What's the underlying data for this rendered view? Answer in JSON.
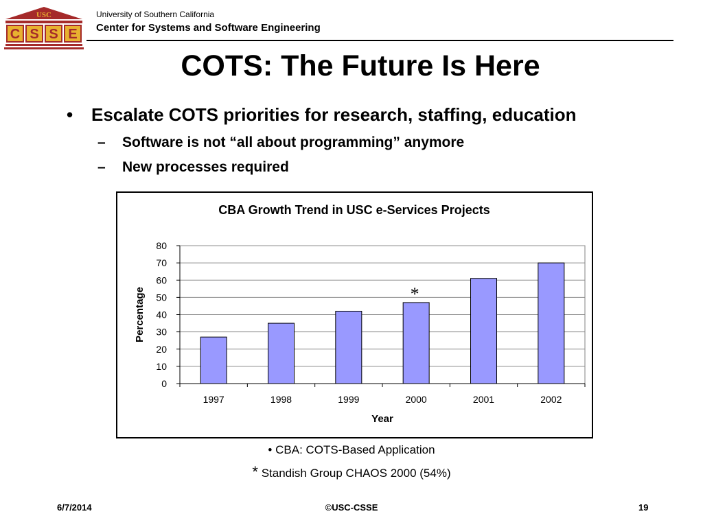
{
  "header": {
    "logo_text": "USC",
    "logo_letters": [
      "C",
      "S",
      "S",
      "E"
    ],
    "university": "University of Southern California",
    "center": "Center for Systems and Software Engineering"
  },
  "slide": {
    "title": "COTS: The Future Is Here",
    "bullet": "Escalate COTS priorities for research, staffing, education",
    "subbullets": [
      "Software is not “all about programming” anymore",
      "New processes required"
    ],
    "bullet_symbol": "•",
    "dash_symbol": "–"
  },
  "chart_data": {
    "type": "bar",
    "title": "CBA Growth Trend in USC e-Services Projects",
    "xlabel": "Year",
    "ylabel": "Percentage",
    "categories": [
      "1997",
      "1998",
      "1999",
      "2000",
      "2001",
      "2002"
    ],
    "values": [
      27,
      35,
      42,
      47,
      61,
      70
    ],
    "ylim": [
      0,
      80
    ],
    "yticks": [
      0,
      10,
      20,
      30,
      40,
      50,
      60,
      70,
      80
    ],
    "grid": true,
    "bar_color": "#9999ff",
    "annotation": {
      "text": "*",
      "category": "2000"
    }
  },
  "notes": {
    "n1_symbol": "•",
    "n1_text": "CBA: COTS-Based Application",
    "n2_symbol": "*",
    "n2_text": "Standish Group CHAOS 2000 (54%)"
  },
  "footer": {
    "date": "6/7/2014",
    "copyright": "©USC-CSSE",
    "page": "19"
  },
  "colors": {
    "logo_red": "#b22222",
    "logo_gold": "#e8b130"
  }
}
